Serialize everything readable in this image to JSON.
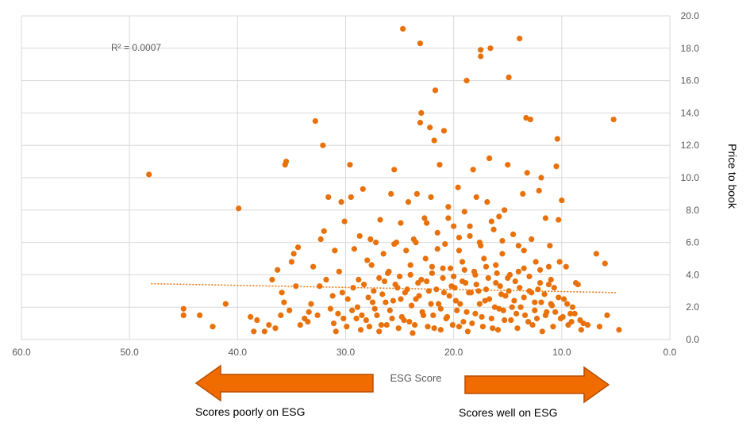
{
  "chart_data": {
    "type": "scatter",
    "xlabel": "ESG Score",
    "ylabel": "Price to book",
    "xlim": [
      60,
      0
    ],
    "ylim": [
      0,
      20
    ],
    "x_reversed": true,
    "x_ticks": [
      "60.0",
      "50.0",
      "40.0",
      "30.0",
      "20.0",
      "10.0",
      "0.0"
    ],
    "y_ticks": [
      "0.0",
      "2.0",
      "4.0",
      "6.0",
      "8.0",
      "10.0",
      "12.0",
      "14.0",
      "16.0",
      "18.0",
      "20.0"
    ],
    "grid": true,
    "y_axis_side": "right",
    "r_squared_label": "R² = 0.0007",
    "trendline": {
      "style": "dotted",
      "x": [
        48,
        5
      ],
      "y": [
        3.45,
        2.9
      ]
    },
    "colors": {
      "points": "#E8710A",
      "trendline": "#E8710A",
      "arrow": "#F06C00",
      "arrow_border": "#B84F00",
      "grid": "#D9D9D9"
    },
    "arrows": {
      "left_label": "Scores poorly on ESG",
      "right_label": "Scores well on ESG"
    },
    "series": [
      {
        "marker": "circle",
        "points": [
          [
            48.2,
            10.2
          ],
          [
            45,
            1.9
          ],
          [
            45,
            1.5
          ],
          [
            43.5,
            1.5
          ],
          [
            42.3,
            0.8
          ],
          [
            41.1,
            2.2
          ],
          [
            39.9,
            8.1
          ],
          [
            38.8,
            1.4
          ],
          [
            38.5,
            0.5
          ],
          [
            38.2,
            1.2
          ],
          [
            37.5,
            0.5
          ],
          [
            37.1,
            0.9
          ],
          [
            36.8,
            3.7
          ],
          [
            36.5,
            0.7
          ],
          [
            36.3,
            4.3
          ],
          [
            36,
            1.5
          ],
          [
            35.9,
            2.9
          ],
          [
            35.7,
            2.3
          ],
          [
            35.6,
            10.8
          ],
          [
            35.5,
            11
          ],
          [
            35.2,
            1.8
          ],
          [
            35,
            4.8
          ],
          [
            34.8,
            5.3
          ],
          [
            34.6,
            3.3
          ],
          [
            34.4,
            5.7
          ],
          [
            34.2,
            0.9
          ],
          [
            33.8,
            1.3
          ],
          [
            33.5,
            1.1
          ],
          [
            33.2,
            2.2
          ],
          [
            33,
            4.5
          ],
          [
            32.8,
            13.5
          ],
          [
            32.6,
            1.5
          ],
          [
            32.4,
            3.3
          ],
          [
            32.3,
            6.2
          ],
          [
            32.1,
            12
          ],
          [
            32,
            6.7
          ],
          [
            31.8,
            3.7
          ],
          [
            31.6,
            8.8
          ],
          [
            31.4,
            1.9
          ],
          [
            31.2,
            2.7
          ],
          [
            31,
            5.5
          ],
          [
            30.9,
            0.5
          ],
          [
            30.7,
            1.6
          ],
          [
            30.6,
            4.2
          ],
          [
            30.4,
            8.5
          ],
          [
            30.2,
            1.3
          ],
          [
            30.1,
            7.3
          ],
          [
            29.9,
            0.8
          ],
          [
            29.8,
            2.5
          ],
          [
            29.6,
            10.8
          ],
          [
            29.5,
            8.8
          ],
          [
            29.3,
            3.2
          ],
          [
            29.2,
            5.6
          ],
          [
            29,
            1.3
          ],
          [
            28.9,
            2
          ],
          [
            28.7,
            6.4
          ],
          [
            28.6,
            0.6
          ],
          [
            28.4,
            9.3
          ],
          [
            28.3,
            3.4
          ],
          [
            28.1,
            1.2
          ],
          [
            28,
            4.9
          ],
          [
            27.8,
            0.8
          ],
          [
            27.7,
            6.2
          ],
          [
            27.5,
            2.3
          ],
          [
            27.4,
            3
          ],
          [
            27.2,
            6
          ],
          [
            27.1,
            1.5
          ],
          [
            26.9,
            0.5
          ],
          [
            26.8,
            7.4
          ],
          [
            26.6,
            2.8
          ],
          [
            26.5,
            5.3
          ],
          [
            26.4,
            3.6
          ],
          [
            26.2,
            0.9
          ],
          [
            26.1,
            4.1
          ],
          [
            25.9,
            1.8
          ],
          [
            25.8,
            9
          ],
          [
            25.6,
            2.4
          ],
          [
            25.5,
            10.5
          ],
          [
            25.3,
            6
          ],
          [
            25.2,
            3.2
          ],
          [
            25.1,
            0.7
          ],
          [
            24.9,
            7.2
          ],
          [
            24.8,
            1.4
          ],
          [
            24.7,
            19.2
          ],
          [
            24.5,
            2.9
          ],
          [
            24.4,
            5.5
          ],
          [
            24.2,
            8.5
          ],
          [
            24.1,
            1.1
          ],
          [
            24,
            4
          ],
          [
            23.8,
            0.4
          ],
          [
            23.7,
            6.2
          ],
          [
            23.5,
            2.5
          ],
          [
            23.4,
            9
          ],
          [
            23.3,
            3.5
          ],
          [
            23.1,
            13.4
          ],
          [
            23.1,
            18.3
          ],
          [
            23,
            14
          ],
          [
            22.9,
            1.7
          ],
          [
            22.7,
            7.5
          ],
          [
            22.6,
            5
          ],
          [
            22.4,
            0.8
          ],
          [
            22.3,
            3
          ],
          [
            22.2,
            13.1
          ],
          [
            22.1,
            8.8
          ],
          [
            22,
            4.5
          ],
          [
            21.9,
            1.5
          ],
          [
            21.8,
            12.3
          ],
          [
            21.7,
            15.4
          ],
          [
            21.5,
            6.6
          ],
          [
            21.4,
            2.2
          ],
          [
            21.3,
            10.8
          ],
          [
            21.2,
            0.6
          ],
          [
            21,
            3.8
          ],
          [
            20.9,
            12.9
          ],
          [
            20.8,
            5.9
          ],
          [
            20.7,
            1.3
          ],
          [
            20.5,
            8.2
          ],
          [
            20.4,
            2.7
          ],
          [
            20.3,
            4.4
          ],
          [
            20.1,
            0.9
          ],
          [
            20,
            7
          ],
          [
            19.9,
            3.2
          ],
          [
            19.7,
            1.8
          ],
          [
            19.6,
            9.4
          ],
          [
            19.5,
            5.5
          ],
          [
            19.4,
            2.2
          ],
          [
            19.2,
            4.8
          ],
          [
            19.1,
            1.1
          ],
          [
            19,
            7.9
          ],
          [
            18.9,
            3.5
          ],
          [
            18.8,
            16
          ],
          [
            18.7,
            0.5
          ],
          [
            18.5,
            6.4
          ],
          [
            18.4,
            2.9
          ],
          [
            18.2,
            10.5
          ],
          [
            18.1,
            4.2
          ],
          [
            18,
            1.6
          ],
          [
            17.9,
            8.8
          ],
          [
            17.7,
            3
          ],
          [
            17.6,
            6
          ],
          [
            17.5,
            17.5
          ],
          [
            17.5,
            17.9
          ],
          [
            17.3,
            0.8
          ],
          [
            17.2,
            5
          ],
          [
            17.1,
            2.4
          ],
          [
            16.9,
            8.5
          ],
          [
            16.8,
            3.8
          ],
          [
            16.7,
            11.2
          ],
          [
            16.6,
            18
          ],
          [
            16.5,
            1.3
          ],
          [
            16.3,
            6.8
          ],
          [
            16.2,
            2
          ],
          [
            16.1,
            4.6
          ],
          [
            15.9,
            0.6
          ],
          [
            15.8,
            7.6
          ],
          [
            15.7,
            3.3
          ],
          [
            15.5,
            5.3
          ],
          [
            15.4,
            1.8
          ],
          [
            15.3,
            8
          ],
          [
            15.2,
            2.7
          ],
          [
            15,
            10.8
          ],
          [
            14.9,
            16.2
          ],
          [
            14.8,
            4
          ],
          [
            14.7,
            1.2
          ],
          [
            14.5,
            6.5
          ],
          [
            14.4,
            2.4
          ],
          [
            14.3,
            3.6
          ],
          [
            14.1,
            0.7
          ],
          [
            14,
            5.8
          ],
          [
            13.9,
            18.6
          ],
          [
            13.8,
            2
          ],
          [
            13.6,
            9
          ],
          [
            13.5,
            4.4
          ],
          [
            13.4,
            1.5
          ],
          [
            13.3,
            13.7
          ],
          [
            13.2,
            10.3
          ],
          [
            13,
            3
          ],
          [
            12.9,
            13.6
          ],
          [
            12.8,
            6.2
          ],
          [
            12.7,
            0.9
          ],
          [
            12.5,
            2.3
          ],
          [
            12.4,
            4.8
          ],
          [
            12.3,
            1.3
          ],
          [
            12.1,
            9.2
          ],
          [
            12,
            3.5
          ],
          [
            11.9,
            10
          ],
          [
            11.8,
            0.5
          ],
          [
            11.6,
            2.8
          ],
          [
            11.5,
            7.5
          ],
          [
            11.4,
            1.7
          ],
          [
            11.2,
            4.5
          ],
          [
            11.1,
            5.8
          ],
          [
            11,
            2.2
          ],
          [
            10.8,
            0.8
          ],
          [
            10.7,
            3.2
          ],
          [
            10.5,
            10.7
          ],
          [
            10.4,
            12.4
          ],
          [
            10.3,
            7.4
          ],
          [
            10.2,
            4.8
          ],
          [
            10.1,
            1.3
          ],
          [
            10,
            8.6
          ],
          [
            9.8,
            2.5
          ],
          [
            9.6,
            4.5
          ],
          [
            9.4,
            0.9
          ],
          [
            9.2,
            1.6
          ],
          [
            9,
            2
          ],
          [
            8.7,
            3.5
          ],
          [
            8.5,
            3.4
          ],
          [
            8.2,
            0.6
          ],
          [
            8,
            1
          ],
          [
            7.6,
            0.9
          ],
          [
            6.8,
            5.3
          ],
          [
            6.5,
            0.8
          ],
          [
            6,
            4.7
          ],
          [
            5.8,
            1.5
          ],
          [
            5.2,
            13.6
          ],
          [
            4.7,
            0.6
          ],
          [
            33.4,
            1.7
          ],
          [
            31.1,
            1
          ],
          [
            30.3,
            2.9
          ],
          [
            29.4,
            1.8
          ],
          [
            28.8,
            3.7
          ],
          [
            28.5,
            1.5
          ],
          [
            27.9,
            2.6
          ],
          [
            27.3,
            1.9
          ],
          [
            26.7,
            0.9
          ],
          [
            26.3,
            2.3
          ],
          [
            25.7,
            1.3
          ],
          [
            25.4,
            3.4
          ],
          [
            24.9,
            2.5
          ],
          [
            24.6,
            1.2
          ],
          [
            24.3,
            3.1
          ],
          [
            23.9,
            2.1
          ],
          [
            23.6,
            0.9
          ],
          [
            23.2,
            2.7
          ],
          [
            22.8,
            1.5
          ],
          [
            22.5,
            3.6
          ],
          [
            22.1,
            2.2
          ],
          [
            21.8,
            0.7
          ],
          [
            21.6,
            3.1
          ],
          [
            21.2,
            1.9
          ],
          [
            20.9,
            2.9
          ],
          [
            20.6,
            1.4
          ],
          [
            20.2,
            3.3
          ],
          [
            19.8,
            2.4
          ],
          [
            19.5,
            0.8
          ],
          [
            19.2,
            3.6
          ],
          [
            18.8,
            1.7
          ],
          [
            18.6,
            2.9
          ],
          [
            18.3,
            1
          ],
          [
            17.9,
            3.4
          ],
          [
            17.6,
            2.2
          ],
          [
            17.4,
            1.4
          ],
          [
            17,
            3.1
          ],
          [
            16.7,
            2.5
          ],
          [
            16.4,
            0.7
          ],
          [
            16.1,
            3.5
          ],
          [
            15.8,
            1.9
          ],
          [
            15.6,
            2.8
          ],
          [
            15.3,
            1.2
          ],
          [
            14.9,
            3
          ],
          [
            14.6,
            2
          ],
          [
            14.2,
            1.6
          ],
          [
            13.9,
            3.2
          ],
          [
            13.5,
            2.6
          ],
          [
            13.1,
            1.1
          ],
          [
            12.8,
            2.9
          ],
          [
            12.5,
            1.8
          ],
          [
            12.2,
            3.1
          ],
          [
            11.9,
            2.3
          ],
          [
            11.5,
            1.5
          ],
          [
            11.2,
            3.4
          ],
          [
            10.9,
            2.1
          ],
          [
            10.6,
            1.7
          ],
          [
            10.3,
            2.6
          ],
          [
            9.9,
            1.4
          ],
          [
            9.5,
            2.2
          ],
          [
            9.1,
            1.1
          ],
          [
            8.8,
            1.6
          ],
          [
            8.3,
            1.2
          ],
          [
            27.6,
            4.6
          ],
          [
            26.9,
            3.8
          ],
          [
            26,
            4.2
          ],
          [
            25,
            3.9
          ],
          [
            24,
            4.6
          ],
          [
            23,
            3.7
          ],
          [
            22,
            4.1
          ],
          [
            21,
            4.4
          ],
          [
            20,
            3.9
          ],
          [
            19,
            4.3
          ],
          [
            18,
            4
          ],
          [
            17,
            4.5
          ],
          [
            16,
            4.1
          ],
          [
            15,
            3.8
          ],
          [
            14,
            4.2
          ],
          [
            13,
            3.9
          ],
          [
            12,
            4.3
          ],
          [
            11,
            3.7
          ],
          [
            25.5,
            5.9
          ],
          [
            23.5,
            6
          ],
          [
            21.5,
            5.6
          ],
          [
            19.5,
            6.3
          ],
          [
            17.5,
            5.8
          ],
          [
            15.5,
            6.1
          ],
          [
            13.5,
            5.5
          ],
          [
            22.5,
            7.2
          ],
          [
            20.5,
            7.5
          ],
          [
            18.5,
            7
          ],
          [
            16.5,
            7.3
          ]
        ]
      }
    ]
  }
}
